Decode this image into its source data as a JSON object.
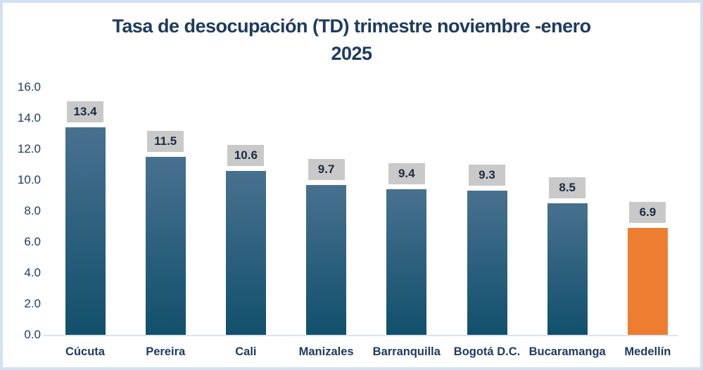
{
  "chart": {
    "title_line1": "Tasa de desocupación (TD) trimestre noviembre -enero",
    "title_line2": "2025"
  },
  "chart_data": {
    "type": "bar",
    "title": "Tasa de desocupación (TD) trimestre noviembre -enero 2025",
    "xlabel": "",
    "ylabel": "",
    "categories": [
      "Cúcuta",
      "Pereira",
      "Cali",
      "Manizales",
      "Barranquilla",
      "Bogotá D.C.",
      "Bucaramanga",
      "Medellín"
    ],
    "values": [
      13.4,
      11.5,
      10.6,
      9.7,
      9.4,
      9.3,
      8.5,
      6.9
    ],
    "data_labels": [
      "13.4",
      "11.5",
      "10.6",
      "9.7",
      "9.4",
      "9.3",
      "8.5",
      "6.9"
    ],
    "ylim": [
      0,
      16
    ],
    "ytick_step": 2,
    "ytick_labels": [
      "0.0",
      "2.0",
      "4.0",
      "6.0",
      "8.0",
      "10.0",
      "12.0",
      "14.0",
      "16.0"
    ],
    "grid": false,
    "legend": false,
    "highlight_index": 7,
    "colors": {
      "bar_gradient_top": "#48718F",
      "bar_gradient_bottom": "#11506C",
      "highlight_bar": "#ED7D31",
      "label_bg": "#C9C9C9",
      "label_text": "#1B2B40",
      "axis_text": "#1E3A5F",
      "title_text": "#1E3A5F",
      "axis_line": "#D9E3F1",
      "frame_border": "#D3E2F1"
    }
  }
}
